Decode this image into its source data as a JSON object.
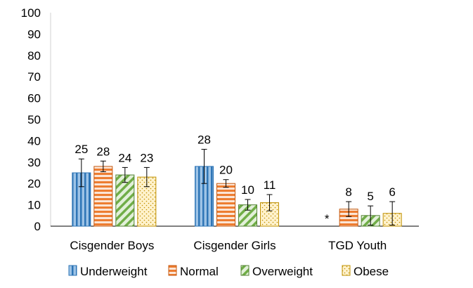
{
  "chart_data": {
    "type": "bar",
    "title": "",
    "xlabel": "",
    "ylabel": "",
    "ylim": [
      0,
      100
    ],
    "yticks": [
      0,
      10,
      20,
      30,
      40,
      50,
      60,
      70,
      80,
      90,
      100
    ],
    "categories": [
      "Cisgender Boys",
      "Cisgender Girls",
      "TGD Youth"
    ],
    "series": [
      {
        "name": "Underweight",
        "values": [
          25,
          28,
          null
        ],
        "errors": [
          6.5,
          8,
          null
        ],
        "color": "#9dc3e6",
        "stroke": "#2e75b6",
        "pattern": "vertical-stripes"
      },
      {
        "name": "Normal",
        "values": [
          28,
          20,
          8
        ],
        "errors": [
          2.5,
          1.8,
          3.5
        ],
        "color": "#f4b183",
        "stroke": "#c55a11",
        "pattern": "horizontal-stripes"
      },
      {
        "name": "Overweight",
        "values": [
          24,
          10,
          5
        ],
        "errors": [
          3.5,
          2.5,
          4.5
        ],
        "color": "#a9d18e",
        "stroke": "#548235",
        "pattern": "diagonal-stripes"
      },
      {
        "name": "Obese",
        "values": [
          23,
          11,
          6
        ],
        "errors": [
          4.5,
          3.8,
          5.5
        ],
        "color": "#ffe699",
        "stroke": "#bf9000",
        "pattern": "dots"
      }
    ],
    "data_labels": [
      [
        "25",
        "28",
        "24",
        "23"
      ],
      [
        "28",
        "20",
        "10",
        "11"
      ],
      [
        "*",
        "8",
        "5",
        "6"
      ]
    ],
    "grid": false,
    "legend": "bottom"
  }
}
